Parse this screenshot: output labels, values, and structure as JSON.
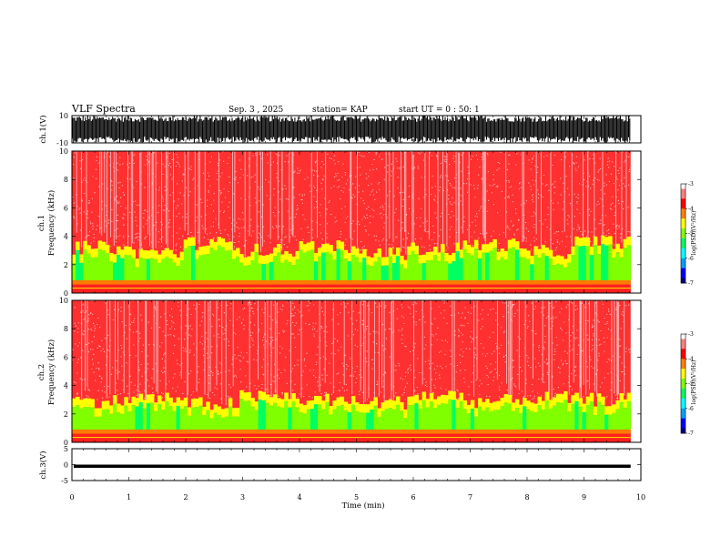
{
  "header": {
    "title": "VLF Spectra",
    "date": "Sep. 3 , 2025",
    "station": "station= KAP",
    "start": "start  UT =   0 : 50: 1"
  },
  "colors": {
    "background": "#ffffff",
    "axis": "#000000",
    "colormap": [
      "#000080",
      "#0000ff",
      "#00a0ff",
      "#00ffff",
      "#00ff60",
      "#80ff00",
      "#ffff00",
      "#ff8000",
      "#ff0000",
      "#ff8080",
      "#ffffff"
    ]
  },
  "chart_data": [
    {
      "type": "line",
      "name": "ch1-waveform",
      "ylabel": "ch.1(V)",
      "ylim": [
        -10,
        10
      ],
      "yticks": [
        "10",
        "-10"
      ],
      "xlim": [
        0,
        10
      ],
      "xunits": "min",
      "data_extent_min": 9.82,
      "description_values": {
        "typical_min": -10,
        "typical_max": 10
      }
    },
    {
      "type": "heatmap",
      "name": "ch1-spectrogram",
      "ylabel": "ch.1\nFrequency  (kHz)",
      "ylabel_line1": "ch.1",
      "ylabel_line2": "Frequency  (kHz)",
      "ylim": [
        0,
        10
      ],
      "yticks": [
        "0",
        "2",
        "4",
        "6",
        "8",
        "10"
      ],
      "xlim": [
        0,
        10
      ],
      "data_extent_min": 9.82,
      "colorbar": {
        "label": "log(PSD)(V²/Hz)",
        "min": -7,
        "max": -3,
        "ticks": [
          "-3",
          "-4",
          "-5",
          "-6",
          "-7"
        ]
      },
      "band_top_khz": [
        3.2,
        2.9,
        3.5,
        3.0,
        3.3,
        2.8,
        3.1,
        3.4,
        2.9,
        3.6
      ]
    },
    {
      "type": "heatmap",
      "name": "ch2-spectrogram",
      "ylabel": "ch.2\nFrequency  (kHz)",
      "ylabel_line1": "ch.2",
      "ylabel_line2": "Frequency  (kHz)",
      "ylim": [
        0,
        10
      ],
      "yticks": [
        "0",
        "2",
        "4",
        "6",
        "8",
        "10"
      ],
      "xlim": [
        0,
        10
      ],
      "data_extent_min": 9.82,
      "colorbar": {
        "label": "log(PSD)(V²/Hz)",
        "min": -7,
        "max": -3,
        "ticks": [
          "-3",
          "-4",
          "-5",
          "-6",
          "-7"
        ]
      },
      "band_top_khz": [
        2.9,
        3.1,
        2.7,
        3.2,
        3.0,
        2.8,
        3.3,
        2.9,
        3.1,
        3.0
      ]
    },
    {
      "type": "line",
      "name": "ch3-waveform",
      "ylabel": "ch.3(V)",
      "ylim": [
        -5,
        5
      ],
      "yticks": [
        "5",
        "0",
        "-5"
      ],
      "xlim": [
        0,
        10
      ],
      "data_extent_min": 9.82,
      "description_values": {
        "typical_min": -1,
        "typical_max": 0
      }
    }
  ],
  "xaxis": {
    "label": "Time  (min)",
    "ticks": [
      "0",
      "1",
      "2",
      "3",
      "4",
      "5",
      "6",
      "7",
      "8",
      "9",
      "10"
    ]
  }
}
